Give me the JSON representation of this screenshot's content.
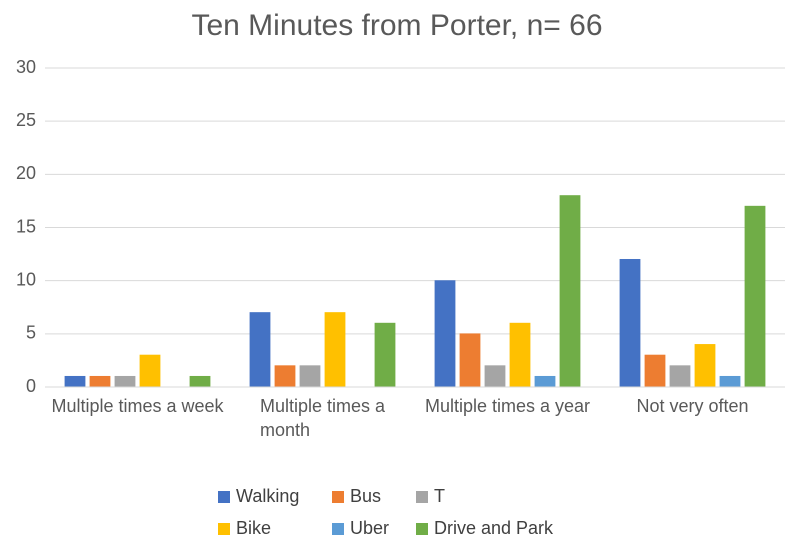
{
  "chart_data": {
    "type": "bar",
    "title": "Ten Minutes from Porter, n= 66",
    "categories": [
      "Multiple times a week",
      "Multiple times a month",
      "Multiple times a year",
      "Not very often"
    ],
    "series": [
      {
        "name": "Walking",
        "color": "#4472c4",
        "values": [
          1,
          7,
          10,
          12
        ]
      },
      {
        "name": "Bus",
        "color": "#ed7d31",
        "values": [
          1,
          2,
          5,
          3
        ]
      },
      {
        "name": "T",
        "color": "#a5a5a5",
        "values": [
          1,
          2,
          2,
          2
        ]
      },
      {
        "name": "Bike",
        "color": "#ffc000",
        "values": [
          3,
          7,
          6,
          4
        ]
      },
      {
        "name": "Uber",
        "color": "#5b9bd5",
        "values": [
          0,
          0,
          1,
          1
        ]
      },
      {
        "name": "Drive and Park",
        "color": "#70ad47",
        "values": [
          1,
          6,
          18,
          17
        ]
      }
    ],
    "ylim": [
      0,
      30
    ],
    "yticks": [
      0,
      5,
      10,
      15,
      20,
      25,
      30
    ],
    "grid": true,
    "legend": "bottom"
  }
}
